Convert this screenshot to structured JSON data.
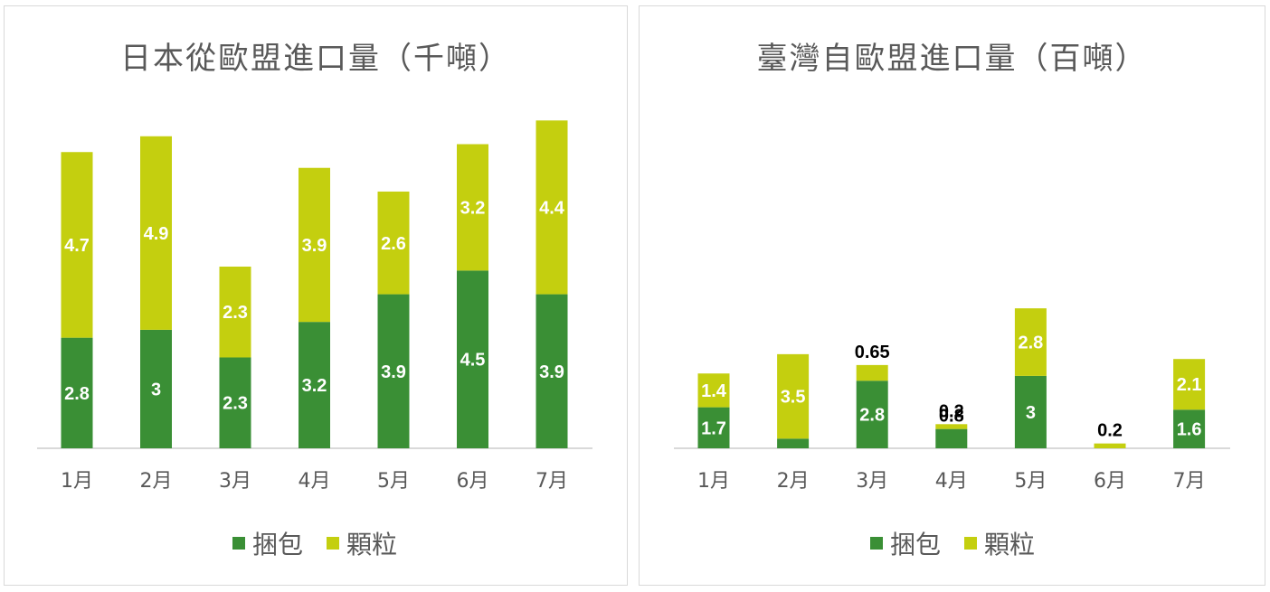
{
  "colors": {
    "bale": "#3a8f35",
    "pellet": "#c4cf0f",
    "axis": "#d9d9d9",
    "text": "#595959"
  },
  "chart_data": [
    {
      "type": "bar",
      "stacked": true,
      "title": "日本從歐盟進口量（千噸）",
      "categories": [
        "1月",
        "2月",
        "3月",
        "4月",
        "5月",
        "6月",
        "7月"
      ],
      "series": [
        {
          "name": "捆包",
          "values": [
            2.8,
            3,
            2.3,
            3.2,
            3.9,
            4.5,
            3.9
          ],
          "labels": [
            "2.8",
            "3",
            "2.3",
            "3.2",
            "3.9",
            "4.5",
            "3.9"
          ]
        },
        {
          "name": "顆粒",
          "values": [
            4.7,
            4.9,
            2.3,
            3.9,
            2.6,
            3.2,
            4.4
          ],
          "labels": [
            "4.7",
            "4.9",
            "2.3",
            "3.9",
            "2.6",
            "3.2",
            "4.4"
          ]
        }
      ],
      "legend_position": "bottom",
      "grid": false
    },
    {
      "type": "bar",
      "stacked": true,
      "title": "臺灣自歐盟進口量（百噸）",
      "categories": [
        "1月",
        "2月",
        "3月",
        "4月",
        "5月",
        "6月",
        "7月"
      ],
      "series": [
        {
          "name": "捆包",
          "values": [
            1.7,
            0.4,
            2.8,
            0.8,
            3,
            0,
            1.6
          ],
          "labels": [
            "1.7",
            "0.4",
            "2.8",
            "0.8",
            "3",
            "",
            "1.6"
          ]
        },
        {
          "name": "顆粒",
          "values": [
            1.4,
            3.5,
            0.65,
            0.2,
            2.8,
            0.2,
            2.1
          ],
          "labels": [
            "1.4",
            "3.5",
            "0.65",
            "0.2",
            "2.8",
            "0.2",
            "2.1"
          ]
        }
      ],
      "legend_position": "bottom",
      "grid": false
    }
  ]
}
